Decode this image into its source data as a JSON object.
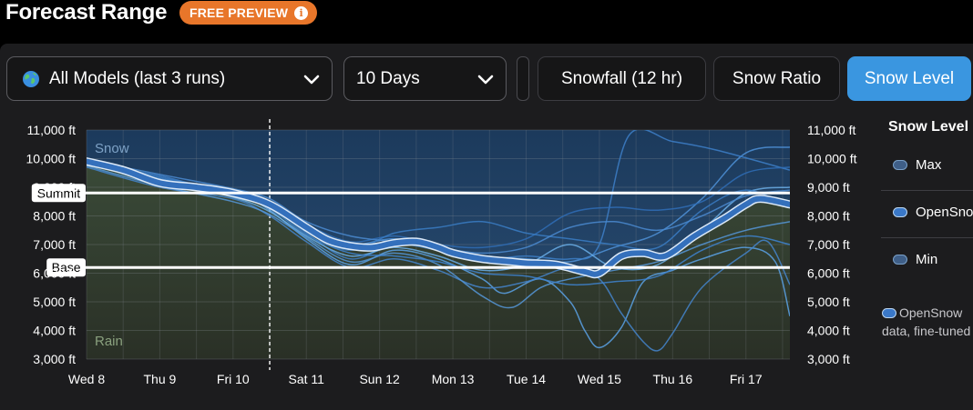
{
  "header": {
    "title": "Forecast Range",
    "badge": "FREE PREVIEW",
    "badge_icon": "info-icon"
  },
  "controls": {
    "models_select": {
      "icon": "globe-icon",
      "value": "All Models (last 3 runs)"
    },
    "days_select": {
      "value": "10 Days"
    },
    "tabs": [
      {
        "label": "Snowfall (12 hr)",
        "active": false
      },
      {
        "label": "Snow Ratio",
        "active": false
      },
      {
        "label": "Snow Level",
        "active": true
      }
    ]
  },
  "legend": {
    "title": "Snow Level",
    "items": [
      {
        "label": "Max",
        "color": "#3f5f88"
      },
      {
        "label": "OpenSnow",
        "color": "#3a78c8"
      },
      {
        "label": "Min",
        "color": "#3f5f88"
      }
    ],
    "note_line1": "OpenSnow",
    "note_line2": "data, fine-tuned"
  },
  "chart_data": {
    "type": "line",
    "y_unit": "ft",
    "ylim": [
      3000,
      11000
    ],
    "y_ticks": [
      "11,000 ft",
      "10,000 ft",
      "9,000 ft",
      "8,000 ft",
      "7,000 ft",
      "6,000 ft",
      "5,000 ft",
      "4,000 ft",
      "3,000 ft"
    ],
    "x_labels": [
      "Wed 8",
      "Thu 9",
      "Fri 10",
      "Sat 11",
      "Sun 12",
      "Mon 13",
      "Tue 14",
      "Wed 15",
      "Thu 16",
      "Fri 17"
    ],
    "x_range_days": [
      0,
      9.6
    ],
    "now_marker_day": 2.5,
    "zone_labels": {
      "top": "Snow",
      "bottom": "Rain"
    },
    "reference_lines": [
      {
        "label": "Summit",
        "value": 8800
      },
      {
        "label": "Base",
        "value": 6200
      }
    ],
    "opensnow_series": {
      "name": "OpenSnow",
      "points": [
        [
          0,
          9900
        ],
        [
          0.5,
          9600
        ],
        [
          1,
          9150
        ],
        [
          1.5,
          9000
        ],
        [
          2,
          8800
        ],
        [
          2.5,
          8400
        ],
        [
          3,
          7600
        ],
        [
          3.3,
          7150
        ],
        [
          3.6,
          6950
        ],
        [
          3.9,
          6900
        ],
        [
          4.2,
          7050
        ],
        [
          4.5,
          7100
        ],
        [
          4.8,
          6900
        ],
        [
          5,
          6700
        ],
        [
          5.4,
          6500
        ],
        [
          5.8,
          6400
        ],
        [
          6,
          6350
        ],
        [
          6.4,
          6300
        ],
        [
          6.8,
          6050
        ],
        [
          7,
          6000
        ],
        [
          7.3,
          6600
        ],
        [
          7.6,
          6700
        ],
        [
          7.9,
          6600
        ],
        [
          8.3,
          7300
        ],
        [
          8.7,
          7900
        ],
        [
          9,
          8400
        ],
        [
          9.2,
          8600
        ],
        [
          9.6,
          8400
        ]
      ]
    },
    "model_series": [
      {
        "points": [
          [
            0,
            9950
          ],
          [
            1,
            9300
          ],
          [
            2,
            8900
          ],
          [
            2.5,
            8500
          ],
          [
            3,
            7500
          ],
          [
            3.6,
            7000
          ],
          [
            4.2,
            7200
          ],
          [
            4.8,
            6900
          ],
          [
            5.4,
            6600
          ],
          [
            6,
            6500
          ],
          [
            6.6,
            6400
          ],
          [
            7.2,
            6900
          ],
          [
            7.8,
            7400
          ],
          [
            8.4,
            8600
          ],
          [
            9,
            10200
          ],
          [
            9.6,
            10400
          ]
        ]
      },
      {
        "points": [
          [
            0,
            9800
          ],
          [
            1,
            9400
          ],
          [
            2,
            8700
          ],
          [
            2.5,
            8300
          ],
          [
            3,
            7400
          ],
          [
            3.6,
            6500
          ],
          [
            4.2,
            7000
          ],
          [
            4.8,
            6800
          ],
          [
            5.4,
            6500
          ],
          [
            6,
            6600
          ],
          [
            6.6,
            6500
          ],
          [
            7,
            7000
          ],
          [
            7.4,
            10800
          ],
          [
            8,
            10600
          ],
          [
            8.6,
            10300
          ],
          [
            9.6,
            9600
          ]
        ]
      },
      {
        "points": [
          [
            0,
            9900
          ],
          [
            1,
            9100
          ],
          [
            2,
            8800
          ],
          [
            2.5,
            8200
          ],
          [
            3,
            7200
          ],
          [
            3.6,
            6300
          ],
          [
            4.2,
            6800
          ],
          [
            4.8,
            6500
          ],
          [
            5.4,
            5800
          ],
          [
            5.7,
            5300
          ],
          [
            6.2,
            5800
          ],
          [
            6.6,
            5000
          ],
          [
            6.8,
            4000
          ],
          [
            7,
            3400
          ],
          [
            7.3,
            4100
          ],
          [
            7.6,
            5700
          ],
          [
            8,
            6100
          ],
          [
            8.4,
            6500
          ],
          [
            9,
            6900
          ],
          [
            9.4,
            6400
          ],
          [
            9.6,
            4500
          ]
        ]
      },
      {
        "points": [
          [
            0,
            9700
          ],
          [
            1,
            9000
          ],
          [
            2,
            8600
          ],
          [
            2.5,
            8000
          ],
          [
            3,
            7100
          ],
          [
            3.6,
            6200
          ],
          [
            4.2,
            6500
          ],
          [
            4.8,
            6100
          ],
          [
            5.4,
            5500
          ],
          [
            6,
            5700
          ],
          [
            6.6,
            6200
          ],
          [
            7,
            5800
          ],
          [
            7.3,
            4600
          ],
          [
            7.6,
            3600
          ],
          [
            7.8,
            3300
          ],
          [
            8,
            3900
          ],
          [
            8.4,
            5500
          ],
          [
            9,
            6700
          ],
          [
            9.3,
            7100
          ],
          [
            9.6,
            5600
          ]
        ]
      },
      {
        "points": [
          [
            0,
            9850
          ],
          [
            1,
            9200
          ],
          [
            2,
            8750
          ],
          [
            2.5,
            8350
          ],
          [
            3,
            7700
          ],
          [
            3.6,
            7100
          ],
          [
            4.2,
            7300
          ],
          [
            4.8,
            7000
          ],
          [
            5.4,
            6900
          ],
          [
            6,
            7200
          ],
          [
            6.6,
            8100
          ],
          [
            7.2,
            8300
          ],
          [
            7.8,
            8200
          ],
          [
            8.4,
            8500
          ],
          [
            9,
            9500
          ],
          [
            9.6,
            9700
          ]
        ]
      },
      {
        "points": [
          [
            0,
            9800
          ],
          [
            1,
            9250
          ],
          [
            2,
            8650
          ],
          [
            2.5,
            8150
          ],
          [
            3,
            7300
          ],
          [
            3.6,
            6600
          ],
          [
            4.2,
            6900
          ],
          [
            4.8,
            6600
          ],
          [
            5.4,
            6100
          ],
          [
            6,
            6300
          ],
          [
            6.6,
            7000
          ],
          [
            7.2,
            6200
          ],
          [
            7.8,
            6300
          ],
          [
            8.4,
            7500
          ],
          [
            9,
            8800
          ],
          [
            9.6,
            9000
          ]
        ]
      },
      {
        "points": [
          [
            0,
            9900
          ],
          [
            1,
            9350
          ],
          [
            2,
            8800
          ],
          [
            2.5,
            8400
          ],
          [
            3,
            7450
          ],
          [
            3.6,
            6800
          ],
          [
            4.2,
            7400
          ],
          [
            4.8,
            7600
          ],
          [
            5.4,
            7800
          ],
          [
            6,
            7400
          ],
          [
            6.6,
            7200
          ],
          [
            7.2,
            7000
          ],
          [
            7.8,
            6900
          ],
          [
            8.4,
            8200
          ],
          [
            9,
            8900
          ],
          [
            9.6,
            8300
          ]
        ]
      },
      {
        "points": [
          [
            0,
            9750
          ],
          [
            1,
            9050
          ],
          [
            2,
            8500
          ],
          [
            2.5,
            8050
          ],
          [
            3,
            7250
          ],
          [
            3.6,
            6400
          ],
          [
            4.2,
            6700
          ],
          [
            4.8,
            6300
          ],
          [
            5.4,
            5200
          ],
          [
            5.8,
            4800
          ],
          [
            6.2,
            5500
          ],
          [
            6.6,
            5800
          ],
          [
            7.2,
            6100
          ],
          [
            7.8,
            6400
          ],
          [
            8.4,
            7000
          ],
          [
            9,
            7500
          ],
          [
            9.6,
            7800
          ]
        ]
      },
      {
        "points": [
          [
            0,
            9950
          ],
          [
            1,
            9450
          ],
          [
            2,
            8950
          ],
          [
            2.5,
            8600
          ],
          [
            3,
            7800
          ],
          [
            3.6,
            7300
          ],
          [
            4.2,
            7100
          ],
          [
            4.8,
            6900
          ],
          [
            5.4,
            6700
          ],
          [
            6,
            6900
          ],
          [
            6.6,
            7600
          ],
          [
            7.2,
            7800
          ],
          [
            7.8,
            7500
          ],
          [
            8.4,
            8000
          ],
          [
            9,
            8700
          ],
          [
            9.6,
            8900
          ]
        ]
      },
      {
        "points": [
          [
            0,
            9850
          ],
          [
            1,
            9150
          ],
          [
            2,
            8700
          ],
          [
            2.5,
            8250
          ],
          [
            3,
            7350
          ],
          [
            3.6,
            6700
          ],
          [
            4.2,
            6600
          ],
          [
            4.8,
            6400
          ],
          [
            5.4,
            6000
          ],
          [
            6,
            5900
          ],
          [
            6.6,
            5600
          ],
          [
            7.2,
            5700
          ],
          [
            7.8,
            5900
          ],
          [
            8.4,
            6800
          ],
          [
            9,
            7300
          ],
          [
            9.6,
            7000
          ]
        ]
      }
    ]
  }
}
